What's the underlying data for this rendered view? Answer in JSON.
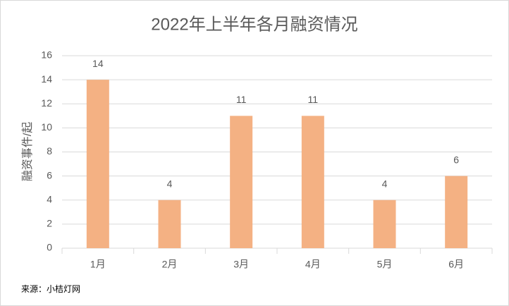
{
  "chart_data": {
    "type": "bar",
    "title": "2022年上半年各月融资情况",
    "y_label": "融资事件/起",
    "source": "来源：小桔灯网",
    "categories": [
      "1月",
      "2月",
      "3月",
      "4月",
      "5月",
      "6月"
    ],
    "values": [
      14,
      4,
      11,
      11,
      4,
      6
    ],
    "color": "#f4b183",
    "ylim": [
      0,
      16
    ],
    "yticks": [
      0,
      2,
      4,
      6,
      8,
      10,
      12,
      14,
      16
    ],
    "grid": true
  }
}
